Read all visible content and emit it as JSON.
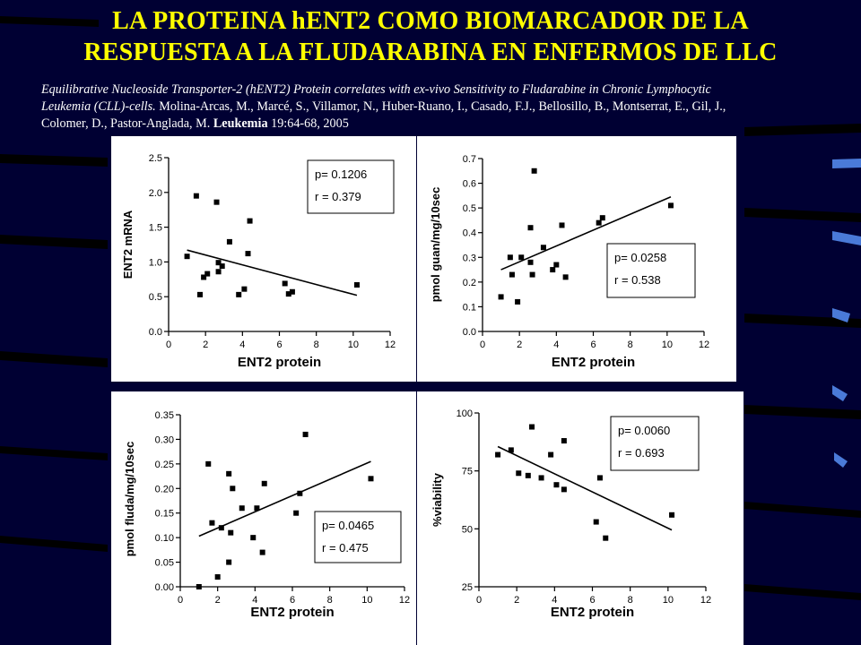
{
  "slide": {
    "title_line1": "LA PROTEINA hENT2 COMO BIOMARCADOR DE LA",
    "title_line2": "RESPUESTA A LA FLUDARABINA EN ENFERMOS DE LLC",
    "ref_italic_1": "Equilibrative Nucleoside Transporter-2 (hENT2) Protein correlates with ex-vivo Sensitivity to Fludarabine in Chronic Lymphocytic",
    "ref_italic_2": "Leukemia (CLL)-cells.",
    "ref_authors_1": " Molina-Arcas, M., Marcé, S., Villamor, N., Huber-Ruano, I., Casado, F.J., Bellosillo, B., Montserrat, E., Gil, J.,",
    "ref_authors_2": "Colomer, D., Pastor-Anglada, M. ",
    "ref_journal": "Leukemia",
    "ref_tail": " 19:64-68, 2005"
  },
  "colors": {
    "background": "#000033",
    "title": "#ffff00",
    "text": "#ffffff",
    "panel": "#ffffff",
    "marks": "#000000"
  },
  "chart_data": [
    {
      "type": "scatter",
      "xlabel": "ENT2 protein",
      "ylabel": "ENT2 mRNA",
      "xlim": [
        0,
        12
      ],
      "ylim": [
        0,
        2.5
      ],
      "xticks": [
        "0",
        "2",
        "4",
        "6",
        "8",
        "10",
        "12"
      ],
      "yticks": [
        "0.0",
        "0.5",
        "1.0",
        "1.5",
        "2.0",
        "2.5"
      ],
      "stats": {
        "p": "p= 0.1206",
        "r": "r = 0.379"
      },
      "fit_line": [
        [
          1.0,
          1.17
        ],
        [
          10.2,
          0.52
        ]
      ],
      "points": [
        [
          1.0,
          1.08
        ],
        [
          1.5,
          1.95
        ],
        [
          1.7,
          0.53
        ],
        [
          1.9,
          0.78
        ],
        [
          2.1,
          0.83
        ],
        [
          2.6,
          1.86
        ],
        [
          2.7,
          0.86
        ],
        [
          2.7,
          0.99
        ],
        [
          2.9,
          0.94
        ],
        [
          3.3,
          1.29
        ],
        [
          3.8,
          0.53
        ],
        [
          4.1,
          0.61
        ],
        [
          4.3,
          1.12
        ],
        [
          4.4,
          1.59
        ],
        [
          6.3,
          0.69
        ],
        [
          6.5,
          0.54
        ],
        [
          6.7,
          0.57
        ],
        [
          10.2,
          0.67
        ]
      ]
    },
    {
      "type": "scatter",
      "xlabel": "ENT2 protein",
      "ylabel": "pmol guan/mg/10sec",
      "xlim": [
        0,
        12
      ],
      "ylim": [
        0,
        0.7
      ],
      "xticks": [
        "0",
        "2",
        "4",
        "6",
        "8",
        "10",
        "12"
      ],
      "yticks": [
        "0.0",
        "0.1",
        "0.2",
        "0.3",
        "0.4",
        "0.5",
        "0.6",
        "0.7"
      ],
      "stats": {
        "p": "p= 0.0258",
        "r": "r = 0.538"
      },
      "fit_line": [
        [
          1.0,
          0.25
        ],
        [
          10.2,
          0.545
        ]
      ],
      "points": [
        [
          1.0,
          0.14
        ],
        [
          1.5,
          0.3
        ],
        [
          1.6,
          0.23
        ],
        [
          1.9,
          0.12
        ],
        [
          2.1,
          0.3
        ],
        [
          2.6,
          0.42
        ],
        [
          2.6,
          0.28
        ],
        [
          2.7,
          0.23
        ],
        [
          2.8,
          0.65
        ],
        [
          3.3,
          0.34
        ],
        [
          3.8,
          0.25
        ],
        [
          4.0,
          0.27
        ],
        [
          4.3,
          0.43
        ],
        [
          4.5,
          0.22
        ],
        [
          6.3,
          0.44
        ],
        [
          6.5,
          0.46
        ],
        [
          10.2,
          0.51
        ]
      ]
    },
    {
      "type": "scatter",
      "xlabel": "ENT2 protein",
      "ylabel": "pmol fluda/mg/10sec",
      "xlim": [
        0,
        12
      ],
      "ylim": [
        0,
        0.35
      ],
      "xticks": [
        "0",
        "2",
        "4",
        "6",
        "8",
        "10",
        "12"
      ],
      "yticks": [
        "0.00",
        "0.05",
        "0.10",
        "0.15",
        "0.20",
        "0.25",
        "0.30",
        "0.35"
      ],
      "stats": {
        "p": "p= 0.0465",
        "r": "r = 0.475"
      },
      "fit_line": [
        [
          1.0,
          0.103
        ],
        [
          10.2,
          0.255
        ]
      ],
      "points": [
        [
          1.0,
          0.0
        ],
        [
          1.5,
          0.25
        ],
        [
          1.7,
          0.13
        ],
        [
          2.0,
          0.02
        ],
        [
          2.2,
          0.12
        ],
        [
          2.6,
          0.05
        ],
        [
          2.6,
          0.23
        ],
        [
          2.7,
          0.11
        ],
        [
          2.8,
          0.2
        ],
        [
          3.3,
          0.16
        ],
        [
          3.9,
          0.1
        ],
        [
          4.1,
          0.16
        ],
        [
          4.4,
          0.07
        ],
        [
          4.5,
          0.21
        ],
        [
          6.2,
          0.15
        ],
        [
          6.4,
          0.19
        ],
        [
          6.7,
          0.31
        ],
        [
          10.2,
          0.22
        ]
      ]
    },
    {
      "type": "scatter",
      "xlabel": "ENT2 protein",
      "ylabel": "%viability",
      "xlim": [
        0,
        12
      ],
      "ylim": [
        25,
        100
      ],
      "xticks": [
        "0",
        "2",
        "4",
        "6",
        "8",
        "10",
        "12"
      ],
      "yticks": [
        "25",
        "50",
        "75",
        "100"
      ],
      "stats": {
        "p": "p= 0.0060",
        "r": "r = 0.693"
      },
      "fit_line": [
        [
          1.0,
          85.5
        ],
        [
          10.2,
          49.5
        ]
      ],
      "points": [
        [
          1.0,
          82
        ],
        [
          1.7,
          84
        ],
        [
          2.1,
          74
        ],
        [
          2.6,
          73
        ],
        [
          2.8,
          94
        ],
        [
          3.3,
          72
        ],
        [
          3.8,
          82
        ],
        [
          4.1,
          69
        ],
        [
          4.5,
          67
        ],
        [
          4.5,
          88
        ],
        [
          6.2,
          53
        ],
        [
          6.4,
          72
        ],
        [
          6.7,
          46
        ],
        [
          10.2,
          56
        ]
      ]
    }
  ]
}
